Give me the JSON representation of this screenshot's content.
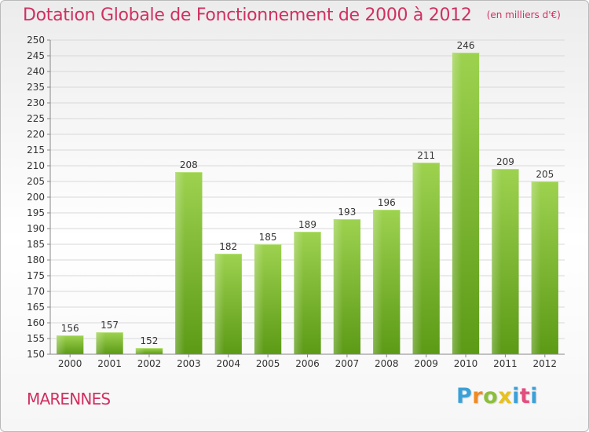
{
  "header": {
    "title": "Dotation Globale de Fonctionnement de 2000 à 2012",
    "unit": "(en milliers d'€)"
  },
  "footer": {
    "commune": "MARENNES",
    "logo": [
      "P",
      "r",
      "o",
      "x",
      "i",
      "t",
      "i"
    ]
  },
  "colors": {
    "title": "#d03060",
    "bar_top": "#9dd24f",
    "bar_bottom": "#5c9a16",
    "grid": "#d8d8d8"
  },
  "chart_data": {
    "type": "bar",
    "title": "Dotation Globale de Fonctionnement de 2000 à 2012",
    "subtitle": "(en milliers d'€)",
    "xlabel": "",
    "ylabel": "",
    "categories": [
      "2000",
      "2001",
      "2002",
      "2003",
      "2004",
      "2005",
      "2006",
      "2007",
      "2008",
      "2009",
      "2010",
      "2011",
      "2012"
    ],
    "values": [
      156,
      157,
      152,
      208,
      182,
      185,
      189,
      193,
      196,
      211,
      246,
      209,
      205
    ],
    "ylim": [
      150,
      250
    ],
    "ytick_step": 5,
    "grid": true,
    "legend": "none"
  }
}
